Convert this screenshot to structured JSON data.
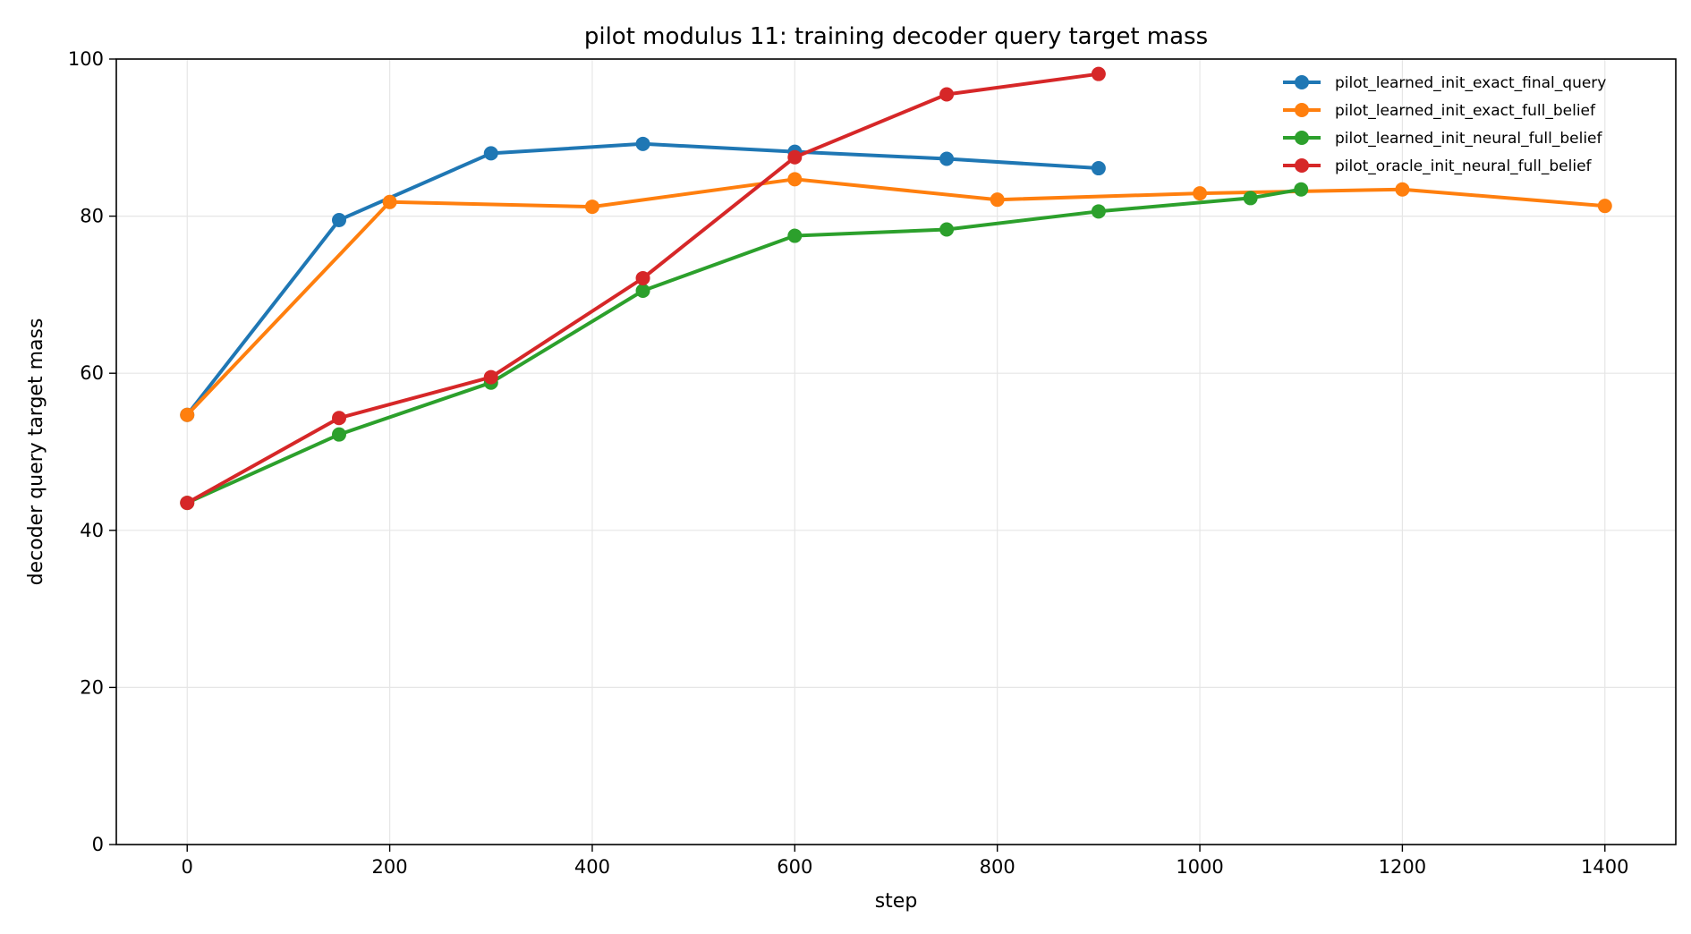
{
  "chart_data": {
    "type": "line",
    "title": "pilot modulus 11: training decoder query target mass",
    "xlabel": "step",
    "ylabel": "decoder query target mass",
    "xlim": [
      -70,
      1470
    ],
    "ylim": [
      0,
      100
    ],
    "xticks": [
      0,
      200,
      400,
      600,
      800,
      1000,
      1200,
      1400
    ],
    "yticks": [
      0,
      20,
      40,
      60,
      80,
      100
    ],
    "grid": true,
    "legend_position": "top-right",
    "series": [
      {
        "name": "pilot_learned_init_exact_final_query",
        "color": "#1f77b4",
        "x": [
          0,
          150,
          300,
          450,
          600,
          750,
          900
        ],
        "y": [
          54.7,
          79.5,
          88.0,
          89.2,
          88.2,
          87.3,
          86.1
        ]
      },
      {
        "name": "pilot_learned_init_exact_full_belief",
        "color": "#ff7f0e",
        "x": [
          0,
          200,
          400,
          600,
          800,
          1000,
          1200,
          1400
        ],
        "y": [
          54.7,
          81.8,
          81.2,
          84.7,
          82.1,
          82.9,
          83.4,
          81.3
        ]
      },
      {
        "name": "pilot_learned_init_neural_full_belief",
        "color": "#2ca02c",
        "x": [
          0,
          150,
          300,
          450,
          600,
          750,
          900,
          1050,
          1100
        ],
        "y": [
          43.5,
          52.2,
          58.8,
          70.5,
          77.5,
          78.3,
          80.6,
          82.3,
          83.4
        ]
      },
      {
        "name": "pilot_oracle_init_neural_full_belief",
        "color": "#d62728",
        "x": [
          0,
          150,
          300,
          450,
          600,
          750,
          900
        ],
        "y": [
          43.5,
          54.3,
          59.5,
          72.1,
          87.5,
          95.5,
          98.1
        ]
      }
    ]
  }
}
